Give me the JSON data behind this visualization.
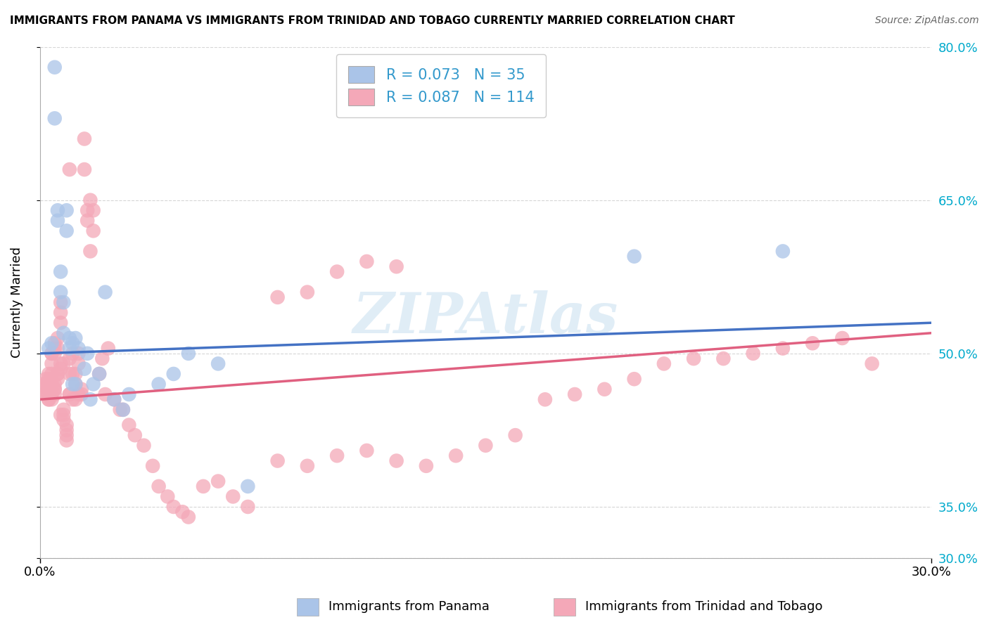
{
  "title": "IMMIGRANTS FROM PANAMA VS IMMIGRANTS FROM TRINIDAD AND TOBAGO CURRENTLY MARRIED CORRELATION CHART",
  "source": "Source: ZipAtlas.com",
  "ylabel": "Currently Married",
  "xmin": 0.0,
  "xmax": 0.3,
  "ymin": 0.3,
  "ymax": 0.8,
  "y_ticks": [
    0.3,
    0.35,
    0.5,
    0.65,
    0.8
  ],
  "y_tick_labels": [
    "30.0%",
    "35.0%",
    "50.0%",
    "65.0%",
    "80.0%"
  ],
  "legend_blue_label": "Immigrants from Panama",
  "legend_pink_label": "Immigrants from Trinidad and Tobago",
  "blue_R": 0.073,
  "blue_N": 35,
  "pink_R": 0.087,
  "pink_N": 114,
  "blue_color": "#aac4e8",
  "pink_color": "#f4a8b8",
  "blue_line_color": "#4472c4",
  "pink_line_color": "#e06080",
  "watermark": "ZIPAtlas",
  "blue_scatter_x": [
    0.003,
    0.004,
    0.005,
    0.005,
    0.006,
    0.006,
    0.007,
    0.007,
    0.008,
    0.008,
    0.009,
    0.009,
    0.01,
    0.01,
    0.011,
    0.011,
    0.012,
    0.012,
    0.013,
    0.015,
    0.016,
    0.017,
    0.018,
    0.02,
    0.022,
    0.025,
    0.028,
    0.03,
    0.04,
    0.045,
    0.05,
    0.06,
    0.07,
    0.2,
    0.25
  ],
  "blue_scatter_y": [
    0.505,
    0.51,
    0.78,
    0.73,
    0.64,
    0.63,
    0.58,
    0.56,
    0.55,
    0.52,
    0.64,
    0.62,
    0.515,
    0.505,
    0.51,
    0.47,
    0.515,
    0.47,
    0.505,
    0.485,
    0.5,
    0.455,
    0.47,
    0.48,
    0.56,
    0.455,
    0.445,
    0.46,
    0.47,
    0.48,
    0.5,
    0.49,
    0.37,
    0.595,
    0.6
  ],
  "pink_scatter_x": [
    0.001,
    0.001,
    0.002,
    0.002,
    0.002,
    0.002,
    0.003,
    0.003,
    0.003,
    0.003,
    0.003,
    0.004,
    0.004,
    0.004,
    0.004,
    0.004,
    0.004,
    0.004,
    0.005,
    0.005,
    0.005,
    0.005,
    0.005,
    0.005,
    0.005,
    0.006,
    0.006,
    0.006,
    0.006,
    0.006,
    0.007,
    0.007,
    0.007,
    0.007,
    0.007,
    0.007,
    0.008,
    0.008,
    0.008,
    0.008,
    0.009,
    0.009,
    0.009,
    0.009,
    0.01,
    0.01,
    0.01,
    0.01,
    0.01,
    0.011,
    0.011,
    0.011,
    0.012,
    0.012,
    0.012,
    0.013,
    0.013,
    0.013,
    0.014,
    0.014,
    0.015,
    0.015,
    0.016,
    0.016,
    0.017,
    0.017,
    0.018,
    0.018,
    0.02,
    0.021,
    0.022,
    0.023,
    0.025,
    0.027,
    0.028,
    0.03,
    0.032,
    0.035,
    0.038,
    0.04,
    0.043,
    0.045,
    0.048,
    0.05,
    0.055,
    0.06,
    0.065,
    0.07,
    0.08,
    0.09,
    0.1,
    0.11,
    0.12,
    0.13,
    0.14,
    0.15,
    0.16,
    0.17,
    0.18,
    0.19,
    0.2,
    0.21,
    0.22,
    0.23,
    0.24,
    0.25,
    0.26,
    0.27,
    0.08,
    0.09,
    0.1,
    0.11,
    0.12,
    0.28
  ],
  "pink_scatter_y": [
    0.465,
    0.47,
    0.475,
    0.46,
    0.47,
    0.46,
    0.455,
    0.48,
    0.465,
    0.475,
    0.455,
    0.5,
    0.47,
    0.48,
    0.455,
    0.49,
    0.46,
    0.5,
    0.465,
    0.46,
    0.5,
    0.47,
    0.505,
    0.465,
    0.51,
    0.48,
    0.505,
    0.475,
    0.515,
    0.48,
    0.53,
    0.485,
    0.54,
    0.49,
    0.44,
    0.55,
    0.49,
    0.445,
    0.44,
    0.435,
    0.43,
    0.425,
    0.42,
    0.415,
    0.68,
    0.48,
    0.495,
    0.46,
    0.46,
    0.48,
    0.455,
    0.5,
    0.47,
    0.48,
    0.455,
    0.49,
    0.46,
    0.5,
    0.465,
    0.46,
    0.71,
    0.68,
    0.63,
    0.64,
    0.65,
    0.6,
    0.62,
    0.64,
    0.48,
    0.495,
    0.46,
    0.505,
    0.455,
    0.445,
    0.445,
    0.43,
    0.42,
    0.41,
    0.39,
    0.37,
    0.36,
    0.35,
    0.345,
    0.34,
    0.37,
    0.375,
    0.36,
    0.35,
    0.395,
    0.39,
    0.4,
    0.405,
    0.395,
    0.39,
    0.4,
    0.41,
    0.42,
    0.455,
    0.46,
    0.465,
    0.475,
    0.49,
    0.495,
    0.495,
    0.5,
    0.505,
    0.51,
    0.515,
    0.555,
    0.56,
    0.58,
    0.59,
    0.585,
    0.49
  ]
}
